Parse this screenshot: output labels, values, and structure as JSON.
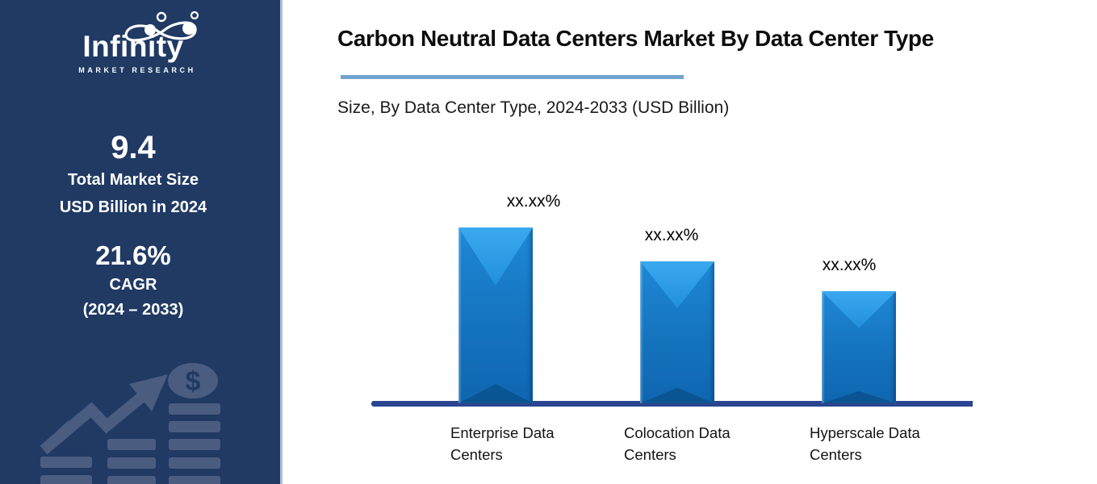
{
  "sidebar": {
    "logo_text": "Infinity",
    "logo_tagline": "MARKET RESEARCH",
    "market_size_value": "9.4",
    "market_size_label_line1": "Total Market Size",
    "market_size_label_line2": "USD Billion in 2024",
    "cagr_value": "21.6%",
    "cagr_label_line1": "CAGR",
    "cagr_label_line2": "(2024 – 2033)",
    "watermark_icons": [
      "growth-arrow-icon",
      "dollar-coin-icon",
      "coin-stack-bars-icon"
    ],
    "colors": {
      "background": "#203A64",
      "watermark": "#4A5C80"
    }
  },
  "header": {
    "title": "Carbon Neutral Data Centers Market By Data Center Type",
    "subtitle": "Size, By Data Center Type, 2024-2033 (USD Billion)",
    "accent_color": "#72A4CE"
  },
  "chart_data": {
    "type": "bar",
    "title": "Carbon Neutral Data Centers Market By Data Center Type",
    "subtitle": "Size, By Data Center Type, 2024-2033 (USD Billion)",
    "unit": "USD Billion",
    "categories": [
      "Enterprise Data Centers",
      "Colocation Data Centers",
      "Hyperscale Data Centers"
    ],
    "category_lines": [
      [
        "Enterprise Data",
        "Centers"
      ],
      [
        "Colocation Data",
        "Centers"
      ],
      [
        "Hyperscale Data",
        "Centers"
      ]
    ],
    "data_labels": [
      "xx.xx%",
      "xx.xx%",
      "xx.xx%"
    ],
    "values_masked": true,
    "relative_heights": [
      1.0,
      0.807,
      0.638
    ],
    "bar_color": "#1878C8",
    "bar_highlight_color": "#3AA9F0",
    "baseline_color": "#2A4590",
    "grid": false,
    "y_axis_visible": false,
    "legend": null
  }
}
